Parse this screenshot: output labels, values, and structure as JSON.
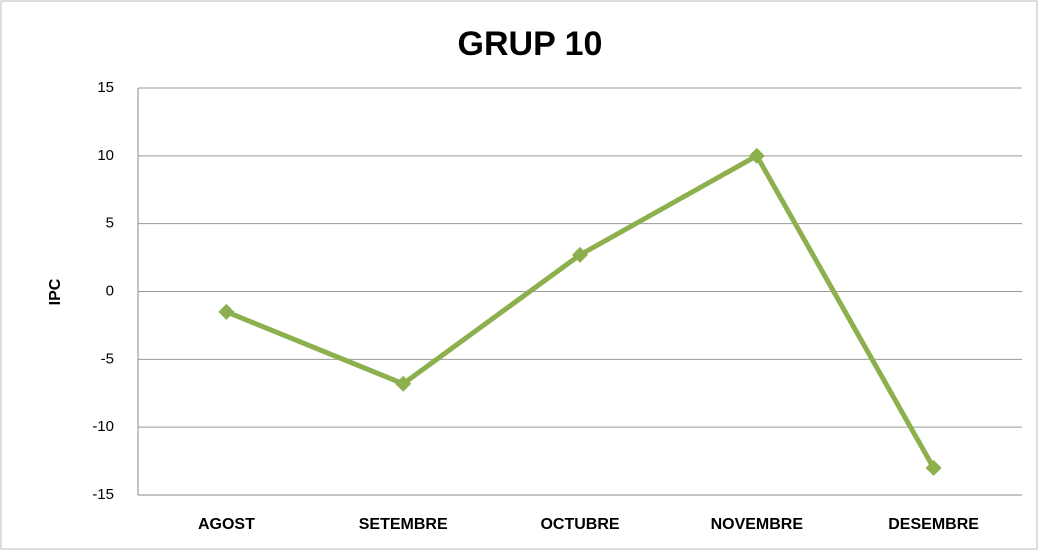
{
  "chart_data": {
    "type": "line",
    "title": "GRUP 10",
    "y_label": "IPC",
    "categories": [
      "AGOST",
      "SETEMBRE",
      "OCTUBRE",
      "NOVEMBRE",
      "DESEMBRE"
    ],
    "series": [
      {
        "name": "IPC",
        "color": "#8db04e",
        "values": [
          -1.5,
          -6.8,
          2.7,
          10,
          -13
        ]
      }
    ],
    "ylim": [
      -15,
      15
    ],
    "yticks": [
      -15,
      -10,
      -5,
      0,
      5,
      10,
      15
    ],
    "grid": true
  }
}
